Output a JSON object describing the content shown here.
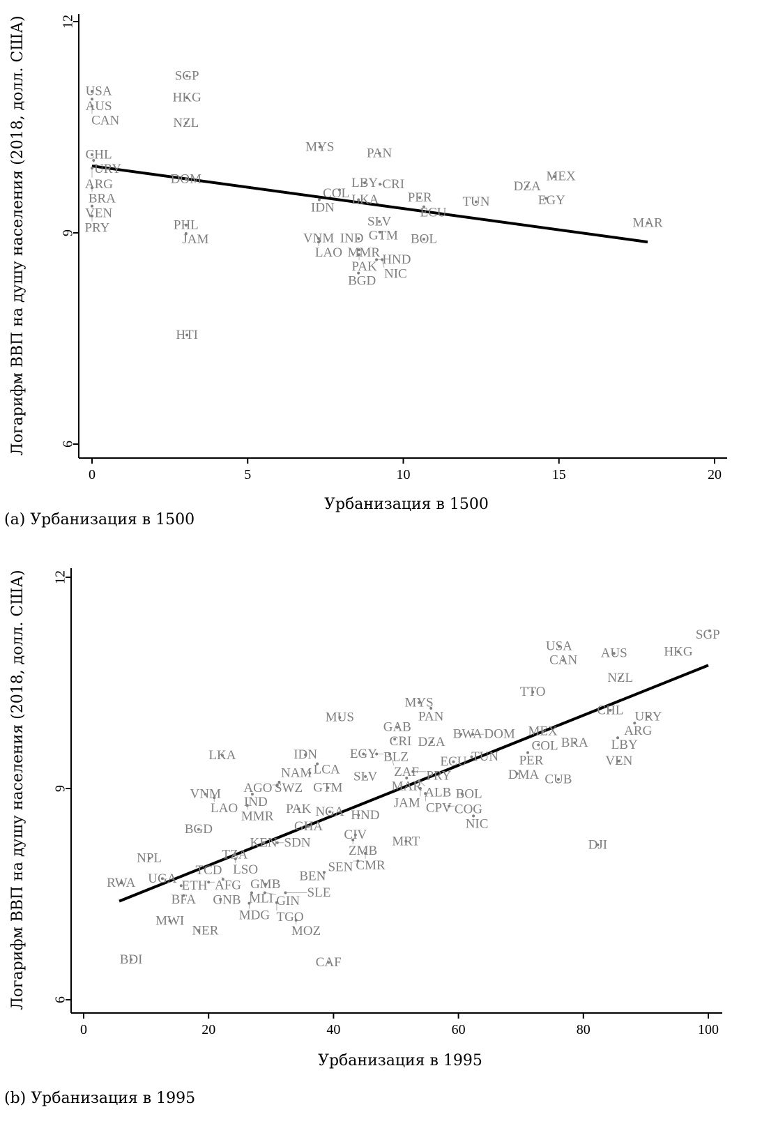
{
  "chart_data": [
    {
      "type": "scatter",
      "caption": "(a) Урбанизация в 1500",
      "xlabel": "Урбанизация в 1500",
      "ylabel": "Логарифм ВВП на душу населения (2018, долл. США)",
      "xlim": [
        -0.4,
        20.4
      ],
      "ylim": [
        5.8,
        12.1
      ],
      "xticks": [
        0,
        5,
        10,
        15,
        20
      ],
      "yticks": [
        6,
        9,
        12
      ],
      "fit_line": {
        "x": [
          0,
          17.85
        ],
        "y": [
          9.95,
          8.87
        ]
      },
      "points": [
        {
          "label": "USA",
          "x": 0,
          "y": 11.01
        },
        {
          "label": "AUS",
          "x": 0,
          "y": 10.9
        },
        {
          "label": "CAN",
          "x": 0,
          "y": 10.8
        },
        {
          "label": "SGP",
          "x": 3.05,
          "y": 11.23
        },
        {
          "label": "HKG",
          "x": 3.05,
          "y": 10.92
        },
        {
          "label": "NZL",
          "x": 3.02,
          "y": 10.56
        },
        {
          "label": "CHL",
          "x": 0,
          "y": 10.11
        },
        {
          "label": "URY",
          "x": 0.05,
          "y": 10.03
        },
        {
          "label": "ARG",
          "x": 0,
          "y": 9.92
        },
        {
          "label": "BRA",
          "x": 0,
          "y": 9.64
        },
        {
          "label": "VEN",
          "x": 0,
          "y": 9.38
        },
        {
          "label": "PRY",
          "x": 0,
          "y": 9.24
        },
        {
          "label": "DOM",
          "x": 3.02,
          "y": 9.76
        },
        {
          "label": "PHL",
          "x": 3.02,
          "y": 9.11
        },
        {
          "label": "JAM",
          "x": 3.02,
          "y": 8.99
        },
        {
          "label": "HTI",
          "x": 3.05,
          "y": 7.55
        },
        {
          "label": "MYS",
          "x": 7.32,
          "y": 10.22
        },
        {
          "label": "PAN",
          "x": 9.23,
          "y": 10.13
        },
        {
          "label": "LBY",
          "x": 8.76,
          "y": 9.71
        },
        {
          "label": "CRI",
          "x": 9.25,
          "y": 9.69
        },
        {
          "label": "COL",
          "x": 7.95,
          "y": 9.61
        },
        {
          "label": "IDN",
          "x": 7.3,
          "y": 9.47
        },
        {
          "label": "LKA",
          "x": 8.56,
          "y": 9.47
        },
        {
          "label": "PER",
          "x": 10.53,
          "y": 9.5
        },
        {
          "label": "ECU",
          "x": 10.66,
          "y": 9.37
        },
        {
          "label": "TUN",
          "x": 12.34,
          "y": 9.44
        },
        {
          "label": "DZA",
          "x": 13.98,
          "y": 9.66
        },
        {
          "label": "MEX",
          "x": 14.85,
          "y": 9.8
        },
        {
          "label": "EGY",
          "x": 14.58,
          "y": 9.49
        },
        {
          "label": "MAR",
          "x": 17.85,
          "y": 9.14
        },
        {
          "label": "SLV",
          "x": 9.23,
          "y": 9.16
        },
        {
          "label": "GTM",
          "x": 9.25,
          "y": 9.01
        },
        {
          "label": "VNM",
          "x": 7.28,
          "y": 8.92
        },
        {
          "label": "LAO",
          "x": 7.28,
          "y": 8.87
        },
        {
          "label": "IND",
          "x": 8.56,
          "y": 8.92
        },
        {
          "label": "BOL",
          "x": 10.66,
          "y": 8.91
        },
        {
          "label": "MMR",
          "x": 8.58,
          "y": 8.76
        },
        {
          "label": "PAK",
          "x": 8.58,
          "y": 8.69
        },
        {
          "label": "HND",
          "x": 9.14,
          "y": 8.62
        },
        {
          "label": "NIC",
          "x": 9.32,
          "y": 8.62
        },
        {
          "label": "BGD",
          "x": 8.56,
          "y": 8.43
        }
      ]
    },
    {
      "type": "scatter",
      "caption": "(b) Урбанизация в 1995",
      "xlabel": "Урбанизация в 1995",
      "ylabel": "Логарифм ВВП на душу населения (2018, долл. США)",
      "xlim": [
        -2,
        102
      ],
      "ylim": [
        5.8,
        12.1
      ],
      "xticks": [
        0,
        20,
        40,
        60,
        80,
        100
      ],
      "yticks": [
        6,
        9,
        12
      ],
      "fit_line": {
        "x": [
          5.7,
          100
        ],
        "y": [
          7.4,
          10.75
        ]
      },
      "points": [
        {
          "label": "SGP",
          "x": 100.2,
          "y": 11.24
        },
        {
          "label": "HKG",
          "x": 95.2,
          "y": 10.94
        },
        {
          "label": "AUS",
          "x": 84.9,
          "y": 10.92
        },
        {
          "label": "USA",
          "x": 76.1,
          "y": 11.02
        },
        {
          "label": "CAN",
          "x": 76.8,
          "y": 10.82
        },
        {
          "label": "NZL",
          "x": 85.9,
          "y": 10.57
        },
        {
          "label": "TTO",
          "x": 71.9,
          "y": 10.37
        },
        {
          "label": "CHL",
          "x": 84.3,
          "y": 10.11
        },
        {
          "label": "URY",
          "x": 90.4,
          "y": 10.02
        },
        {
          "label": "ARG",
          "x": 88.2,
          "y": 9.93
        },
        {
          "label": "LBY",
          "x": 85.5,
          "y": 9.72
        },
        {
          "label": "VEN",
          "x": 85.7,
          "y": 9.39
        },
        {
          "label": "BRA",
          "x": 78.6,
          "y": 9.65
        },
        {
          "label": "MEX",
          "x": 73.5,
          "y": 9.81
        },
        {
          "label": "COL",
          "x": 72.8,
          "y": 9.62
        },
        {
          "label": "PER",
          "x": 71.1,
          "y": 9.51
        },
        {
          "label": "DMA",
          "x": 69.4,
          "y": 9.21
        },
        {
          "label": "CUB",
          "x": 76.0,
          "y": 9.13
        },
        {
          "label": "DJI",
          "x": 82.3,
          "y": 8.2
        },
        {
          "label": "MYS",
          "x": 53.7,
          "y": 10.22
        },
        {
          "label": "PAN",
          "x": 55.6,
          "y": 10.14
        },
        {
          "label": "MUS",
          "x": 41.0,
          "y": 10.01
        },
        {
          "label": "GAB",
          "x": 50.2,
          "y": 9.87
        },
        {
          "label": "CRI",
          "x": 49.8,
          "y": 9.7
        },
        {
          "label": "DZA",
          "x": 55.7,
          "y": 9.66
        },
        {
          "label": "BWA",
          "x": 60.4,
          "y": 9.77
        },
        {
          "label": "DOM",
          "x": 62.3,
          "y": 9.77
        },
        {
          "label": "EGY",
          "x": 44.8,
          "y": 9.49
        },
        {
          "label": "BLZ",
          "x": 46.9,
          "y": 9.49
        },
        {
          "label": "ZAF",
          "x": 49.0,
          "y": 9.49
        },
        {
          "label": "ECU",
          "x": 59.2,
          "y": 9.38
        },
        {
          "label": "TUN",
          "x": 62.1,
          "y": 9.45
        },
        {
          "label": "PRY",
          "x": 52.7,
          "y": 9.24
        },
        {
          "label": "MAR",
          "x": 51.7,
          "y": 9.15
        },
        {
          "label": "ALB",
          "x": 53.7,
          "y": 9.11
        },
        {
          "label": "JAM",
          "x": 53.9,
          "y": 9.0
        },
        {
          "label": "CPV",
          "x": 54.7,
          "y": 8.93
        },
        {
          "label": "BOL",
          "x": 60.6,
          "y": 8.92
        },
        {
          "label": "COG",
          "x": 58.5,
          "y": 8.75
        },
        {
          "label": "NIC",
          "x": 62.4,
          "y": 8.61
        },
        {
          "label": "SLV",
          "x": 45.1,
          "y": 9.17
        },
        {
          "label": "IDN",
          "x": 35.5,
          "y": 9.48
        },
        {
          "label": "LCA",
          "x": 37.4,
          "y": 9.35
        },
        {
          "label": "NAM",
          "x": 36.2,
          "y": 9.22
        },
        {
          "label": "GTM",
          "x": 39.1,
          "y": 9.01
        },
        {
          "label": "SWZ",
          "x": 31.3,
          "y": 9.09
        },
        {
          "label": "AGO",
          "x": 31.0,
          "y": 9.05
        },
        {
          "label": "LKA",
          "x": 22.2,
          "y": 9.47
        },
        {
          "label": "VNM",
          "x": 19.5,
          "y": 8.92
        },
        {
          "label": "LAO",
          "x": 20.9,
          "y": 8.87
        },
        {
          "label": "IND",
          "x": 27.0,
          "y": 8.92
        },
        {
          "label": "MMR",
          "x": 26.2,
          "y": 8.76
        },
        {
          "label": "PAK",
          "x": 34.4,
          "y": 8.71
        },
        {
          "label": "NGA",
          "x": 39.4,
          "y": 8.67
        },
        {
          "label": "HND",
          "x": 44.0,
          "y": 8.62
        },
        {
          "label": "GHA",
          "x": 36.0,
          "y": 8.46
        },
        {
          "label": "BGD",
          "x": 18.4,
          "y": 8.42
        },
        {
          "label": "CIV",
          "x": 43.5,
          "y": 8.34
        },
        {
          "label": "ZMB",
          "x": 43.1,
          "y": 8.27
        },
        {
          "label": "MRT",
          "x": 51.6,
          "y": 8.25
        },
        {
          "label": "CMR",
          "x": 45.1,
          "y": 8.08
        },
        {
          "label": "SEN",
          "x": 43.9,
          "y": 7.97
        },
        {
          "label": "KEN",
          "x": 28.8,
          "y": 8.23
        },
        {
          "label": "SDN",
          "x": 31.0,
          "y": 8.23
        },
        {
          "label": "TZA",
          "x": 24.2,
          "y": 8.06
        },
        {
          "label": "LSO",
          "x": 24.3,
          "y": 8.0
        },
        {
          "label": "NPL",
          "x": 10.5,
          "y": 8.01
        },
        {
          "label": "BEN",
          "x": 38.5,
          "y": 7.81
        },
        {
          "label": "RWA",
          "x": 6.0,
          "y": 7.66
        },
        {
          "label": "UGA",
          "x": 12.6,
          "y": 7.72
        },
        {
          "label": "ETH",
          "x": 15.6,
          "y": 7.62
        },
        {
          "label": "AFG",
          "x": 20.0,
          "y": 7.67
        },
        {
          "label": "TCD",
          "x": 22.3,
          "y": 7.71
        },
        {
          "label": "BFA",
          "x": 16.0,
          "y": 7.48
        },
        {
          "label": "GNB",
          "x": 21.9,
          "y": 7.43
        },
        {
          "label": "GMB",
          "x": 29.1,
          "y": 7.64
        },
        {
          "label": "MLI",
          "x": 26.9,
          "y": 7.52
        },
        {
          "label": "GIN",
          "x": 29.0,
          "y": 7.52
        },
        {
          "label": "SLE",
          "x": 32.3,
          "y": 7.52
        },
        {
          "label": "MDG",
          "x": 26.5,
          "y": 7.37
        },
        {
          "label": "TGO",
          "x": 30.9,
          "y": 7.38
        },
        {
          "label": "MOZ",
          "x": 34.0,
          "y": 7.13
        },
        {
          "label": "MWI",
          "x": 13.8,
          "y": 7.12
        },
        {
          "label": "NER",
          "x": 18.4,
          "y": 6.98
        },
        {
          "label": "BDI",
          "x": 7.6,
          "y": 6.57
        },
        {
          "label": "CAF",
          "x": 39.2,
          "y": 6.53
        }
      ]
    }
  ]
}
